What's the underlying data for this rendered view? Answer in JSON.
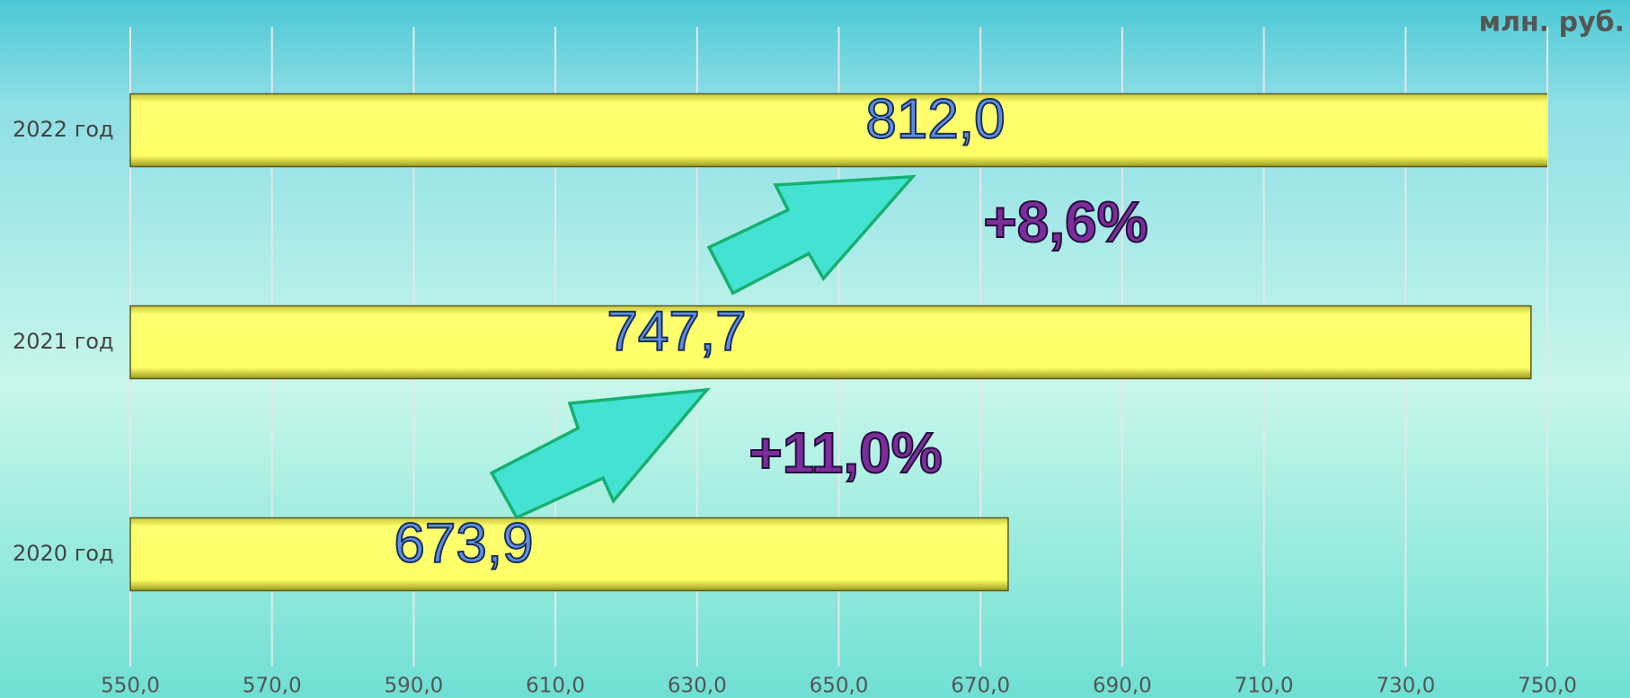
{
  "chart_data": {
    "type": "barh",
    "unit_label": "млн. руб.",
    "categories": [
      "2020 год",
      "2021 год",
      "2022 год"
    ],
    "values": [
      673.9,
      747.7,
      812.0
    ],
    "value_labels": [
      "673,9",
      "747,7",
      "812,0"
    ],
    "color": "#ffff66",
    "xlim": [
      550,
      750
    ],
    "xticks": [
      {
        "value": 550,
        "label": "550,0"
      },
      {
        "value": 570,
        "label": "570,0"
      },
      {
        "value": 590,
        "label": "590,0"
      },
      {
        "value": 610,
        "label": "610,0"
      },
      {
        "value": 630,
        "label": "630,0"
      },
      {
        "value": 650,
        "label": "650,0"
      },
      {
        "value": 670,
        "label": "670,0"
      },
      {
        "value": 690,
        "label": "690,0"
      },
      {
        "value": 710,
        "label": "710,0"
      },
      {
        "value": 730,
        "label": "730,0"
      },
      {
        "value": 750,
        "label": "750,0"
      }
    ],
    "grid": true,
    "annotations": [
      "+11,0%",
      "+8,6%"
    ]
  }
}
